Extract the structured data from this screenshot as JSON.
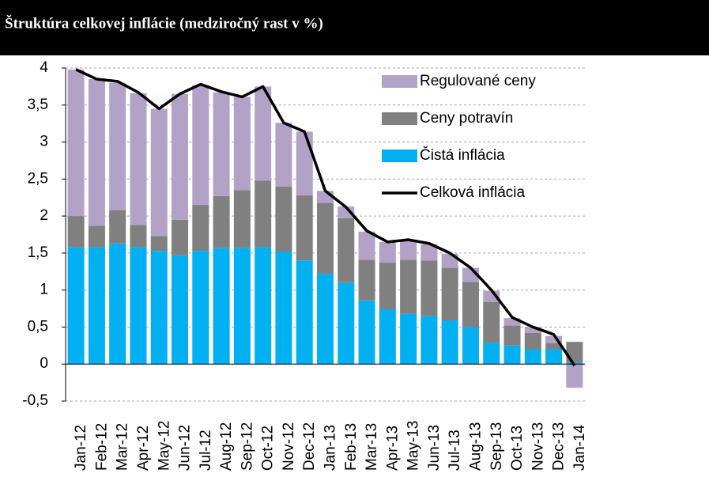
{
  "chart_data": {
    "type": "bar_line",
    "title": "Štruktúra celkovej inflácie (medziročný rast v %)",
    "categories": [
      "Jan-12",
      "Feb-12",
      "Mar-12",
      "Apr-12",
      "May-12",
      "Jun-12",
      "Jul-12",
      "Aug-12",
      "Sep-12",
      "Oct-12",
      "Nov-12",
      "Dec-12",
      "Jan-13",
      "Feb-13",
      "Mar-13",
      "Apr-13",
      "May-13",
      "Jun-13",
      "Jul-13",
      "Aug-13",
      "Sep-13",
      "Oct-13",
      "Nov-13",
      "Dec-13",
      "Jan-14"
    ],
    "series": [
      {
        "name": "Regulované ceny",
        "color": "#b3a2c7",
        "kind": "bar",
        "values": [
          1.98,
          1.98,
          1.72,
          1.78,
          1.72,
          1.7,
          1.62,
          1.4,
          1.26,
          1.27,
          0.86,
          0.86,
          0.16,
          0.16,
          0.38,
          0.28,
          0.26,
          0.22,
          0.19,
          0.19,
          0.15,
          0.1,
          0.08,
          0.1,
          -0.32
        ]
      },
      {
        "name": "Ceny potravín",
        "color": "#808080",
        "kind": "bar",
        "values": [
          0.42,
          0.29,
          0.45,
          0.3,
          0.2,
          0.48,
          0.62,
          0.7,
          0.78,
          0.9,
          0.88,
          0.88,
          0.96,
          0.87,
          0.55,
          0.63,
          0.73,
          0.75,
          0.71,
          0.61,
          0.55,
          0.27,
          0.22,
          0.08,
          0.28
        ]
      },
      {
        "name": "Čistá inflácia",
        "color": "#00b0f0",
        "kind": "bar",
        "values": [
          1.58,
          1.58,
          1.63,
          1.58,
          1.53,
          1.47,
          1.53,
          1.57,
          1.57,
          1.58,
          1.52,
          1.4,
          1.22,
          1.1,
          0.86,
          0.74,
          0.68,
          0.65,
          0.59,
          0.5,
          0.29,
          0.25,
          0.2,
          0.2,
          0.02
        ]
      },
      {
        "name": "Celková inflácia",
        "color": "#000000",
        "kind": "line",
        "values": [
          3.98,
          3.85,
          3.82,
          3.67,
          3.45,
          3.65,
          3.78,
          3.68,
          3.61,
          3.75,
          3.26,
          3.14,
          2.34,
          2.12,
          1.8,
          1.65,
          1.68,
          1.63,
          1.5,
          1.3,
          1.0,
          0.63,
          0.5,
          0.4,
          -0.02
        ]
      }
    ],
    "ylim": [
      -0.5,
      4
    ],
    "yticks": [
      {
        "value": -0.5,
        "label": "-0,5"
      },
      0,
      {
        "value": 0.5,
        "label": "0,5"
      },
      1,
      {
        "value": 1.5,
        "label": "1,5"
      },
      2,
      {
        "value": 2.5,
        "label": "2,5"
      },
      3,
      {
        "value": 3.5,
        "label": "3,5"
      },
      4
    ],
    "grid": true
  }
}
